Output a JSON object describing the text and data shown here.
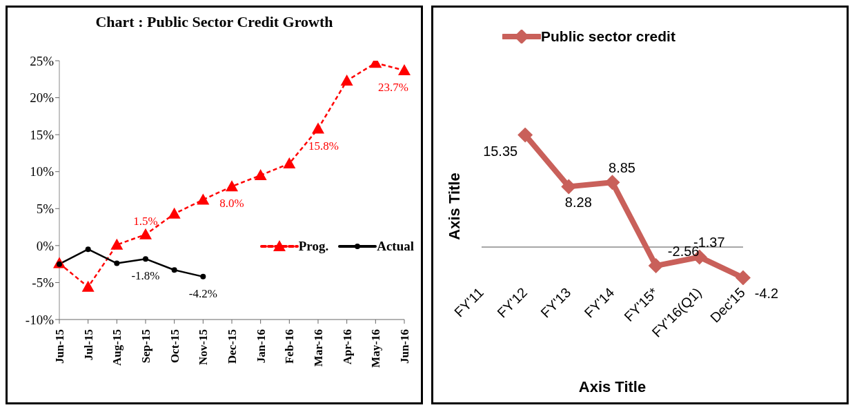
{
  "chart_data": [
    {
      "type": "line",
      "title": "Chart : Public Sector Credit Growth",
      "categories": [
        "Jun-15",
        "Jul-15",
        "Aug-15",
        "Sep-15",
        "Oct-15",
        "Nov-15",
        "Dec-15",
        "Jan-16",
        "Feb-16",
        "Mar-16",
        "Apr-16",
        "May-16",
        "Jun-16"
      ],
      "series": [
        {
          "name": "Prog.",
          "color": "#ff0000",
          "line_style": "dashed",
          "marker": "triangle",
          "values": [
            -2.4,
            -5.6,
            0.1,
            1.5,
            4.3,
            6.2,
            8.0,
            9.5,
            11.1,
            15.8,
            22.3,
            24.7,
            23.7
          ],
          "value_labels": [
            null,
            null,
            null,
            "1.5%",
            null,
            null,
            "8.0%",
            null,
            null,
            "15.8%",
            null,
            null,
            "23.7%"
          ]
        },
        {
          "name": "Actual",
          "color": "#000000",
          "line_style": "solid",
          "marker": "circle",
          "values": [
            -2.5,
            -0.5,
            -2.4,
            -1.8,
            -3.3,
            -4.2,
            null,
            null,
            null,
            null,
            null,
            null,
            null
          ],
          "value_labels": [
            null,
            null,
            null,
            "-1.8%",
            null,
            "-4.2%",
            null,
            null,
            null,
            null,
            null,
            null,
            null
          ]
        }
      ],
      "ylim": [
        -10,
        25
      ],
      "yticks": [
        {
          "value": -10,
          "label": "-10%"
        },
        {
          "value": -5,
          "label": "-5%"
        },
        {
          "value": 0,
          "label": "0%"
        },
        {
          "value": 5,
          "label": "5%"
        },
        {
          "value": 10,
          "label": "10%"
        },
        {
          "value": 15,
          "label": "15%"
        },
        {
          "value": 20,
          "label": "20%"
        },
        {
          "value": 25,
          "label": "25%"
        }
      ],
      "legend": "right"
    },
    {
      "type": "line",
      "xlabel": "Axis Title",
      "ylabel": "Axis Title",
      "categories": [
        "FY'11",
        "FY'12",
        "FY'13",
        "FY'14",
        "FY'15*",
        "FY'16(Q1)",
        "Dec'15"
      ],
      "series": [
        {
          "name": "Public sector credit",
          "color": "#c9605a",
          "line_style": "solid",
          "marker": "diamond",
          "values": [
            null,
            15.35,
            8.28,
            8.85,
            -2.56,
            -1.37,
            -4.2
          ]
        }
      ],
      "data_labels": true,
      "legend": "top",
      "tick_labels": "x"
    }
  ]
}
